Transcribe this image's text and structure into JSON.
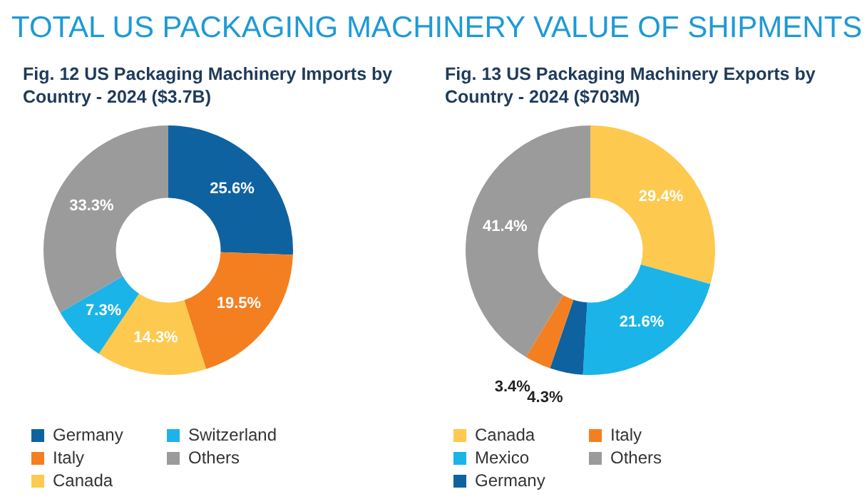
{
  "chart_data": [
    {
      "type": "donut",
      "title": "TOTAL US PACKAGING MACHINERY VALUE OF SHIPMENTS",
      "subtitle": "Fig. 12 US Packaging Machinery Imports by Country - 2024 ($3.7B)",
      "categories": [
        "Germany",
        "Italy",
        "Canada",
        "Switzerland",
        "Others"
      ],
      "values": [
        25.6,
        19.5,
        14.3,
        7.3,
        33.3
      ],
      "value_labels": [
        "25.6%",
        "19.5%",
        "14.3%",
        "7.3%",
        "33.3%"
      ],
      "colors": [
        "#0f62a0",
        "#f47f20",
        "#fdc94f",
        "#1ab4e8",
        "#9b9b9b"
      ],
      "legend": "bottom"
    },
    {
      "type": "donut",
      "subtitle": "Fig. 13 US Packaging Machinery Exports by Country - 2024 ($703M)",
      "categories": [
        "Canada",
        "Mexico",
        "Germany",
        "Italy",
        "Others"
      ],
      "values": [
        29.4,
        21.6,
        4.3,
        3.4,
        41.4
      ],
      "value_labels": [
        "29.4%",
        "21.6%",
        "4.3%",
        "3.4%",
        "41.4%"
      ],
      "colors": [
        "#fdc94f",
        "#1ab4e8",
        "#0f62a0",
        "#f47f20",
        "#9b9b9b"
      ],
      "legend": "bottom"
    }
  ]
}
